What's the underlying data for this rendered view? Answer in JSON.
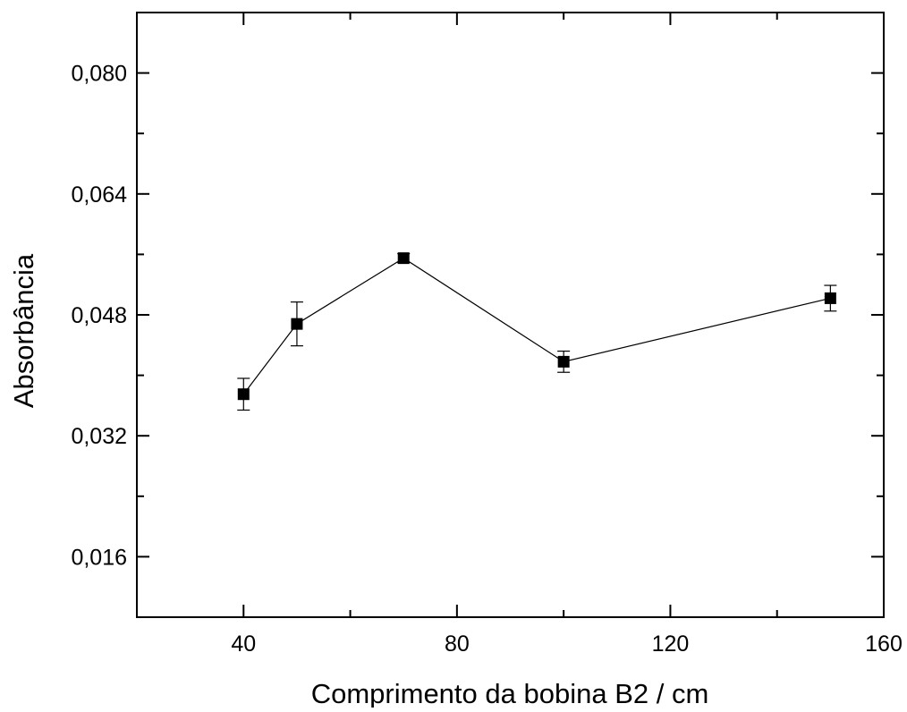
{
  "chart_data": {
    "type": "scatter",
    "title": "",
    "xlabel": "Comprimento da bobina B2 / cm",
    "ylabel": "Absorbância",
    "xlim": [
      20,
      160
    ],
    "ylim": [
      0.008,
      0.088
    ],
    "x_ticks_major": [
      40,
      80,
      120,
      160
    ],
    "x_tick_labels": [
      "40",
      "80",
      "120",
      "160"
    ],
    "x_ticks_minor": [
      20,
      60,
      100,
      140
    ],
    "y_ticks_major": [
      0.016,
      0.032,
      0.048,
      0.064,
      0.08
    ],
    "y_tick_labels": [
      "0,016",
      "0,032",
      "0,048",
      "0,064",
      "0,080"
    ],
    "y_ticks_minor": [
      0.008,
      0.024,
      0.04,
      0.056,
      0.072,
      0.088
    ],
    "grid": false,
    "legend": "none",
    "marker": "square",
    "line": true,
    "color": "#000000",
    "series": [
      {
        "x": [
          40,
          50,
          70,
          100,
          150
        ],
        "y": [
          0.0375,
          0.0468,
          0.0555,
          0.0418,
          0.0502
        ],
        "error": [
          0.0021,
          0.0029,
          0.0006,
          0.0014,
          0.0017
        ]
      }
    ]
  }
}
